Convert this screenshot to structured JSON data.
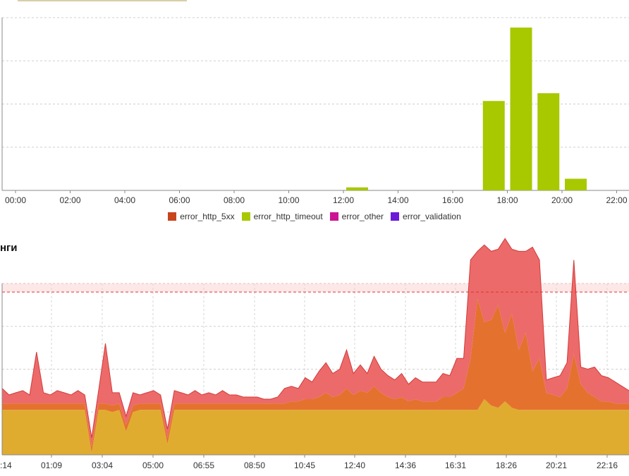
{
  "section_title": "нги",
  "colors": {
    "error_http_5xx": "#c8441c",
    "error_http_timeout": "#a8c800",
    "error_other": "#cc1493",
    "error_validation": "#6a19d8",
    "area_top": "#ec6a6a",
    "area_mid": "#e4722e",
    "area_base": "#e0ac30",
    "threshold": "#e03030"
  },
  "chart_data": [
    {
      "type": "bar",
      "title": "",
      "xlabel": "",
      "ylabel": "",
      "x_ticks": [
        "00:00",
        "02:00",
        "04:00",
        "06:00",
        "08:00",
        "10:00",
        "12:00",
        "14:00",
        "16:00",
        "18:00",
        "20:00",
        "22:00"
      ],
      "grid": true,
      "ylim": [
        0,
        4
      ],
      "legend": [
        {
          "name": "error_http_5xx",
          "color_key": "error_http_5xx"
        },
        {
          "name": "error_http_timeout",
          "color_key": "error_http_timeout"
        },
        {
          "name": "error_other",
          "color_key": "error_other"
        },
        {
          "name": "error_validation",
          "color_key": "error_validation"
        }
      ],
      "legend_position": "bottom",
      "series": [
        {
          "name": "error_http_timeout",
          "hours": [
            12,
            17,
            18,
            19,
            20
          ],
          "values": [
            0.07,
            2.07,
            3.77,
            2.25,
            0.27
          ]
        }
      ]
    },
    {
      "type": "area",
      "title": "",
      "x_ticks": [
        "01:09",
        "03:04",
        "05:00",
        "06:55",
        "08:50",
        "10:45",
        "12:40",
        "14:36",
        "16:31",
        "18:26",
        "20:21",
        "22:16"
      ],
      "first_tick_partial": ":14",
      "grid": true,
      "ylim": [
        0,
        4
      ],
      "threshold": 3.8,
      "series": [
        {
          "name": "base",
          "color_key": "area_base",
          "values": [
            1.05,
            1.05,
            1.05,
            1.05,
            1.05,
            1.05,
            1.05,
            1.05,
            1.05,
            1.05,
            1.05,
            1.05,
            1.05,
            0.05,
            1.05,
            1.05,
            1.0,
            1.05,
            0.55,
            1.0,
            1.05,
            1.05,
            1.05,
            1.05,
            0.25,
            1.05,
            1.05,
            1.05,
            1.05,
            1.05,
            1.05,
            1.05,
            1.05,
            1.05,
            1.05,
            1.05,
            1.05,
            1.05,
            1.05,
            1.05,
            1.05,
            1.05,
            1.05,
            1.05,
            1.05,
            1.05,
            1.05,
            1.05,
            1.05,
            1.05,
            1.05,
            1.05,
            1.05,
            1.05,
            1.05,
            1.05,
            1.05,
            1.05,
            1.05,
            1.05,
            1.05,
            1.05,
            1.05,
            1.05,
            1.05,
            1.05,
            1.05,
            1.05,
            1.05,
            1.05,
            1.3,
            1.15,
            1.1,
            1.25,
            1.1,
            1.05,
            1.05,
            1.05,
            1.05,
            1.05,
            1.05,
            1.05,
            1.05,
            1.05,
            1.05,
            1.05,
            1.05,
            1.05,
            1.05,
            1.05,
            1.05,
            1.05
          ]
        },
        {
          "name": "mid",
          "color_key": "area_mid",
          "values": [
            0.15,
            0.15,
            0.15,
            0.15,
            0.15,
            0.15,
            0.15,
            0.15,
            0.15,
            0.15,
            0.15,
            0.15,
            0.15,
            0.15,
            0.15,
            0.15,
            0.15,
            0.15,
            0.15,
            0.15,
            0.15,
            0.15,
            0.15,
            0.15,
            0.15,
            0.15,
            0.15,
            0.15,
            0.15,
            0.15,
            0.15,
            0.15,
            0.15,
            0.15,
            0.15,
            0.15,
            0.15,
            0.15,
            0.15,
            0.15,
            0.15,
            0.15,
            0.2,
            0.2,
            0.25,
            0.25,
            0.3,
            0.4,
            0.3,
            0.35,
            0.5,
            0.35,
            0.45,
            0.4,
            0.55,
            0.4,
            0.3,
            0.25,
            0.3,
            0.2,
            0.25,
            0.2,
            0.2,
            0.2,
            0.3,
            0.3,
            0.4,
            0.5,
            1.2,
            2.6,
            1.8,
            2.0,
            2.4,
            1.6,
            2.2,
            1.4,
            1.8,
            0.9,
            1.2,
            0.4,
            0.35,
            0.3,
            0.5,
            1.3,
            0.6,
            0.4,
            0.3,
            0.2,
            0.2,
            0.15,
            0.15,
            0.15
          ]
        },
        {
          "name": "top",
          "color_key": "area_top",
          "values": [
            0.35,
            0.2,
            0.25,
            0.3,
            0.2,
            1.2,
            0.25,
            0.2,
            0.3,
            0.25,
            0.2,
            0.3,
            0.2,
            0.2,
            0.3,
            1.4,
            0.3,
            0.25,
            0.2,
            0.3,
            0.2,
            0.25,
            0.3,
            0.2,
            0.2,
            0.3,
            0.25,
            0.2,
            0.3,
            0.2,
            0.25,
            0.2,
            0.3,
            0.2,
            0.2,
            0.15,
            0.15,
            0.15,
            0.1,
            0.1,
            0.15,
            0.35,
            0.35,
            0.3,
            0.5,
            0.4,
            0.6,
            0.7,
            0.55,
            0.6,
            0.9,
            0.5,
            0.6,
            0.45,
            0.7,
            0.55,
            0.5,
            0.45,
            0.55,
            0.4,
            0.5,
            0.45,
            0.45,
            0.45,
            0.55,
            0.5,
            0.8,
            0.7,
            2.3,
            1.1,
            1.8,
            1.6,
            1.3,
            2.2,
            1.5,
            2.3,
            1.9,
            2.9,
            2.3,
            0.3,
            0.4,
            0.5,
            0.6,
            2.2,
            0.4,
            0.55,
            0.7,
            0.6,
            0.55,
            0.5,
            0.4,
            0.3
          ]
        }
      ]
    }
  ]
}
